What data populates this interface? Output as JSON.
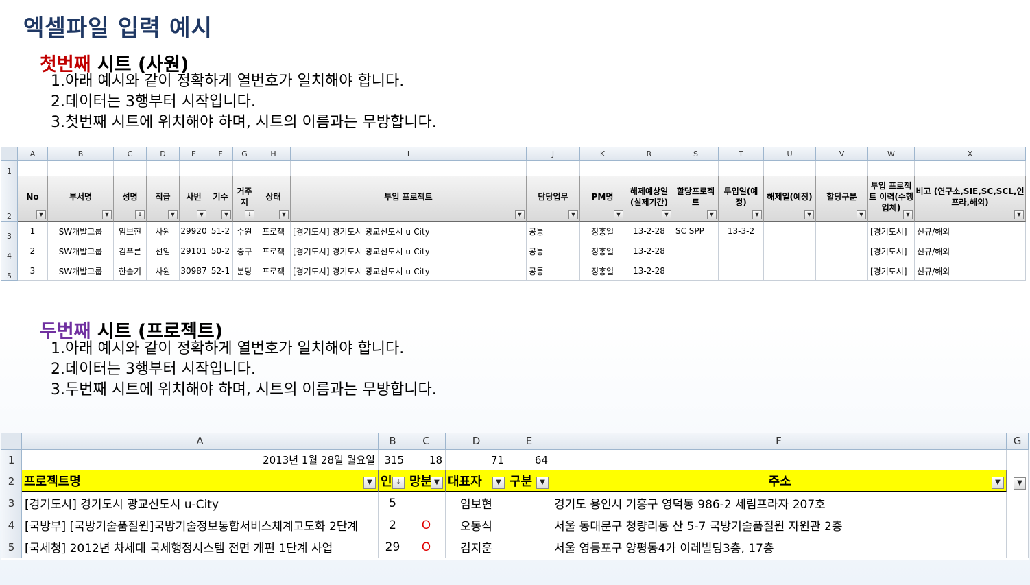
{
  "title": "엑셀파일 입력 예시",
  "sheet1": {
    "heading_colored": "첫번째",
    "heading_rest": " 시트 (사원)",
    "instructions": [
      "1.아래 예시와 같이 정확하게 열번호가 일치해야 합니다.",
      "2.데이터는 3행부터 시작입니다.",
      "3.첫번째 시트에 위치해야 하며, 시트의 이름과는 무방합니다."
    ],
    "col_letters": [
      "A",
      "B",
      "C",
      "D",
      "E",
      "F",
      "G",
      "H",
      "I",
      "J",
      "K",
      "R",
      "S",
      "T",
      "U",
      "V",
      "W",
      "X"
    ],
    "row_numbers": [
      "1",
      "2",
      "3",
      "4",
      "5"
    ],
    "headers": [
      "No",
      "부서명",
      "성명",
      "직급",
      "사번",
      "기수",
      "거주지",
      "상태",
      "투입 프로젝트",
      "담당업무",
      "PM명",
      "해제예상일(실제기간)",
      "할당프로젝트",
      "투입일(예정)",
      "해제일(예정)",
      "할당구분",
      "투입 프로젝트 이력(수행업체)",
      "비고 (연구소,SIE,SC,SCL,인프라,해외)"
    ],
    "rows": [
      [
        "1",
        "SW개발그룹",
        "임보현",
        "사원",
        "29920",
        "51-2",
        "수원",
        "프로젝",
        "[경기도시] 경기도시 광교신도시 u-City",
        "공통",
        "정홍일",
        "13-2-28",
        "SC SPP",
        "13-3-2",
        "",
        "",
        "[경기도시]",
        "신규/해외"
      ],
      [
        "2",
        "SW개발그룹",
        "김푸른",
        "선임",
        "29101",
        "50-2",
        "중구",
        "프로젝",
        "[경기도시] 경기도시 광교신도시 u-City",
        "공통",
        "정홍일",
        "13-2-28",
        "",
        "",
        "",
        "",
        "[경기도시]",
        "신규/해외"
      ],
      [
        "3",
        "SW개발그룹",
        "한슬기",
        "사원",
        "30987",
        "52-1",
        "분당",
        "프로젝",
        "[경기도시] 경기도시 광교신도시 u-City",
        "공통",
        "정홍일",
        "13-2-28",
        "",
        "",
        "",
        "",
        "[경기도시]",
        "신규/해외"
      ]
    ]
  },
  "sheet2": {
    "heading_colored": "두번째",
    "heading_rest": " 시트 (프로젝트)",
    "instructions": [
      "1.아래 예시와 같이 정확하게 열번호가 일치해야 합니다.",
      "2.데이터는 3행부터 시작입니다.",
      "3.두번째 시트에 위치해야 하며, 시트의 이름과는 무방합니다."
    ],
    "col_letters": [
      "A",
      "B",
      "C",
      "D",
      "E",
      "F",
      "G"
    ],
    "row_numbers": [
      "1",
      "2",
      "3",
      "4",
      "5"
    ],
    "row1": [
      "2013년 1월 28일 월요일",
      "315",
      "18",
      "71",
      "64"
    ],
    "headers": [
      "프로젝트명",
      "인",
      "망분",
      "대표자",
      "구분",
      "주소"
    ],
    "rows": [
      [
        "[경기도시] 경기도시 광교신도시 u-City",
        "5",
        "",
        "임보현",
        "",
        "경기도 용인시 기흥구 영덕동 986-2 세림프라자 207호"
      ],
      [
        "[국방부] [국방기술품질원]국방기술정보통합서비스체계고도화 2단계",
        "2",
        "O",
        "오동식",
        "",
        "서울 동대문구 청량리동 산 5-7 국방기술품질원 자원관 2층"
      ],
      [
        "[국세청] 2012년 차세대 국세행정시스템 전면 개편 1단계 사업",
        "29",
        "O",
        "김지훈",
        "",
        "서울 영등포구 양평동4가 이레빌딩3층, 17층"
      ]
    ]
  }
}
